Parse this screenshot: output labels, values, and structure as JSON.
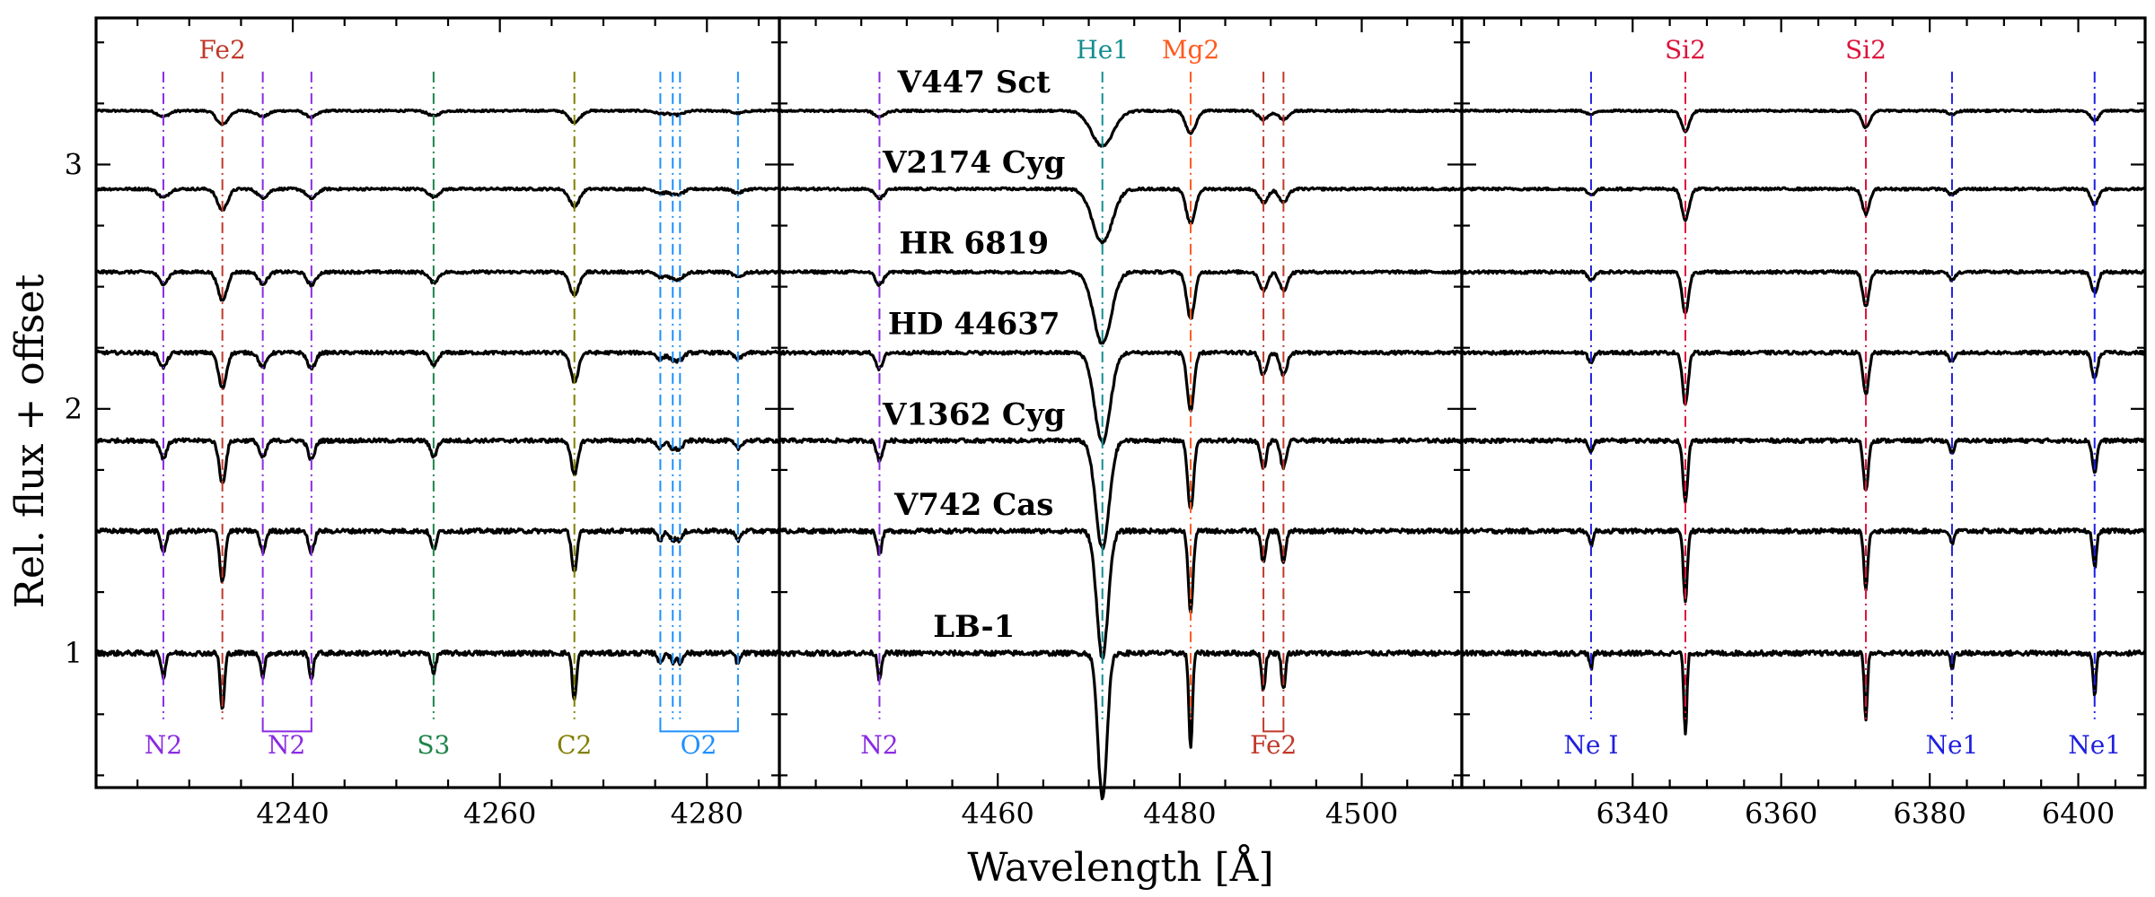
{
  "chart_data": {
    "type": "line",
    "ylabel": "Rel. flux + offset",
    "xlabel": "Wavelength [Å]",
    "ylim": [
      0.45,
      3.6
    ],
    "yticks": [
      1,
      2,
      3
    ],
    "yticklabels": [
      "1",
      "2",
      "3"
    ],
    "series": [
      {
        "name": "V447 Sct",
        "offset": 3.22
      },
      {
        "name": "V2174 Cyg",
        "offset": 2.9
      },
      {
        "name": "HR 6819",
        "offset": 2.56
      },
      {
        "name": "HD 44637",
        "offset": 2.23
      },
      {
        "name": "V1362 Cyg",
        "offset": 1.87
      },
      {
        "name": "V742 Cas",
        "offset": 1.5
      },
      {
        "name": "LB-1",
        "offset": 1.0
      }
    ],
    "star_labels": [
      {
        "text": "V447 Sct",
        "x": 4471.5,
        "y": 3.34
      },
      {
        "text": "V2174 Cyg",
        "x": 4471.5,
        "y": 3.01
      },
      {
        "text": "HR 6819",
        "x": 4471.5,
        "y": 2.68
      },
      {
        "text": "HD 44637",
        "x": 4471.5,
        "y": 2.35
      },
      {
        "text": "V1362 Cyg",
        "x": 4471.5,
        "y": 1.98
      },
      {
        "text": "V742 Cas",
        "x": 4471.5,
        "y": 1.61
      },
      {
        "text": "LB-1",
        "x": 4471.5,
        "y": 1.11
      }
    ],
    "panels": [
      {
        "xlim": [
          4221,
          4287
        ],
        "xticks": [
          4240,
          4260,
          4280
        ],
        "xticklabels": [
          "4240",
          "4260",
          "4280"
        ],
        "lines": [
          {
            "wl": 4227.5,
            "ion": "N2",
            "color": "#8a2be2",
            "strength": 0.045
          },
          {
            "wl": 4233.2,
            "ion": "Fe2",
            "color": "#c0392b",
            "strength": 0.11
          },
          {
            "wl": 4237.1,
            "ion": "N2",
            "color": "#8a2be2",
            "strength": 0.045
          },
          {
            "wl": 4241.8,
            "ion": "N2",
            "color": "#8a2be2",
            "strength": 0.05
          },
          {
            "wl": 4253.6,
            "ion": "S3",
            "color": "#1e8449",
            "strength": 0.04
          },
          {
            "wl": 4267.2,
            "ion": "C2",
            "color": "#808000",
            "strength": 0.09
          },
          {
            "wl": 4275.5,
            "ion": "O2",
            "color": "#1e90ff",
            "strength": 0.02
          },
          {
            "wl": 4276.7,
            "ion": "O2",
            "color": "#1e90ff",
            "strength": 0.02
          },
          {
            "wl": 4277.4,
            "ion": "O2",
            "color": "#1e90ff",
            "strength": 0.02
          },
          {
            "wl": 4283.0,
            "ion": "O2",
            "color": "#1e90ff",
            "strength": 0.02
          }
        ],
        "labels": [
          {
            "text": "Fe2",
            "wl": 4233.2,
            "pos": "top",
            "color": "#c0392b"
          },
          {
            "text": "N2",
            "wl": 4227.5,
            "pos": "bottom",
            "color": "#8a2be2"
          },
          {
            "text": "N2",
            "wl": 4239.4,
            "pos": "bottom",
            "color": "#8a2be2"
          },
          {
            "text": "S3",
            "wl": 4253.6,
            "pos": "bottom",
            "color": "#1e8449"
          },
          {
            "text": "C2",
            "wl": 4267.2,
            "pos": "bottom",
            "color": "#808000"
          },
          {
            "text": "O2",
            "wl": 4279.2,
            "pos": "bottom",
            "color": "#1e90ff"
          }
        ],
        "brackets": [
          {
            "from": 4237.1,
            "to": 4241.8,
            "color": "#8a2be2"
          },
          {
            "from": 4275.5,
            "to": 4283.0,
            "color": "#1e90ff"
          }
        ]
      },
      {
        "xlim": [
          4436,
          4511
        ],
        "xticks": [
          4460,
          4480,
          4500
        ],
        "xticklabels": [
          "4460",
          "4480",
          "4500"
        ],
        "lines": [
          {
            "wl": 4447.0,
            "ion": "N2",
            "color": "#8a2be2",
            "strength": 0.05
          },
          {
            "wl": 4471.5,
            "ion": "He1",
            "color": "#138d90",
            "strength": 0.32
          },
          {
            "wl": 4481.2,
            "ion": "Mg2",
            "color": "#ff5a1f",
            "strength": 0.18
          },
          {
            "wl": 4489.2,
            "ion": "Fe2",
            "color": "#c0392b",
            "strength": 0.07
          },
          {
            "wl": 4491.4,
            "ion": "Fe2",
            "color": "#c0392b",
            "strength": 0.07
          }
        ],
        "labels": [
          {
            "text": "He1",
            "wl": 4471.5,
            "pos": "top",
            "color": "#138d90"
          },
          {
            "text": "Mg2",
            "wl": 4481.2,
            "pos": "top",
            "color": "#ff5a1f"
          },
          {
            "text": "N2",
            "wl": 4447.0,
            "pos": "bottom",
            "color": "#8a2be2"
          },
          {
            "text": "Fe2",
            "wl": 4490.3,
            "pos": "bottom",
            "color": "#c0392b"
          }
        ],
        "brackets": [
          {
            "from": 4489.2,
            "to": 4491.4,
            "color": "#c0392b"
          }
        ]
      },
      {
        "xlim": [
          6317,
          6409
        ],
        "xticks": [
          6340,
          6360,
          6380,
          6400
        ],
        "xticklabels": [
          "6340",
          "6360",
          "6380",
          "6400"
        ],
        "lines": [
          {
            "wl": 6334.4,
            "ion": "Ne I",
            "color": "#1f1fe0",
            "strength": 0.03
          },
          {
            "wl": 6347.1,
            "ion": "Si2",
            "color": "#dc143c",
            "strength": 0.16
          },
          {
            "wl": 6371.4,
            "ion": "Si2",
            "color": "#dc143c",
            "strength": 0.13
          },
          {
            "wl": 6383.0,
            "ion": "Ne1",
            "color": "#1f1fe0",
            "strength": 0.03
          },
          {
            "wl": 6402.2,
            "ion": "Ne1",
            "color": "#1f1fe0",
            "strength": 0.08
          }
        ],
        "labels": [
          {
            "text": "Si2",
            "wl": 6347.1,
            "pos": "top",
            "color": "#dc143c"
          },
          {
            "text": "Si2",
            "wl": 6371.4,
            "pos": "top",
            "color": "#dc143c"
          },
          {
            "text": "Ne I",
            "wl": 6334.4,
            "pos": "bottom",
            "color": "#1f1fe0"
          },
          {
            "text": "Ne1",
            "wl": 6383.0,
            "pos": "bottom",
            "color": "#1f1fe0"
          },
          {
            "text": "Ne1",
            "wl": 6402.2,
            "pos": "bottom",
            "color": "#1f1fe0"
          }
        ],
        "brackets": []
      }
    ]
  }
}
